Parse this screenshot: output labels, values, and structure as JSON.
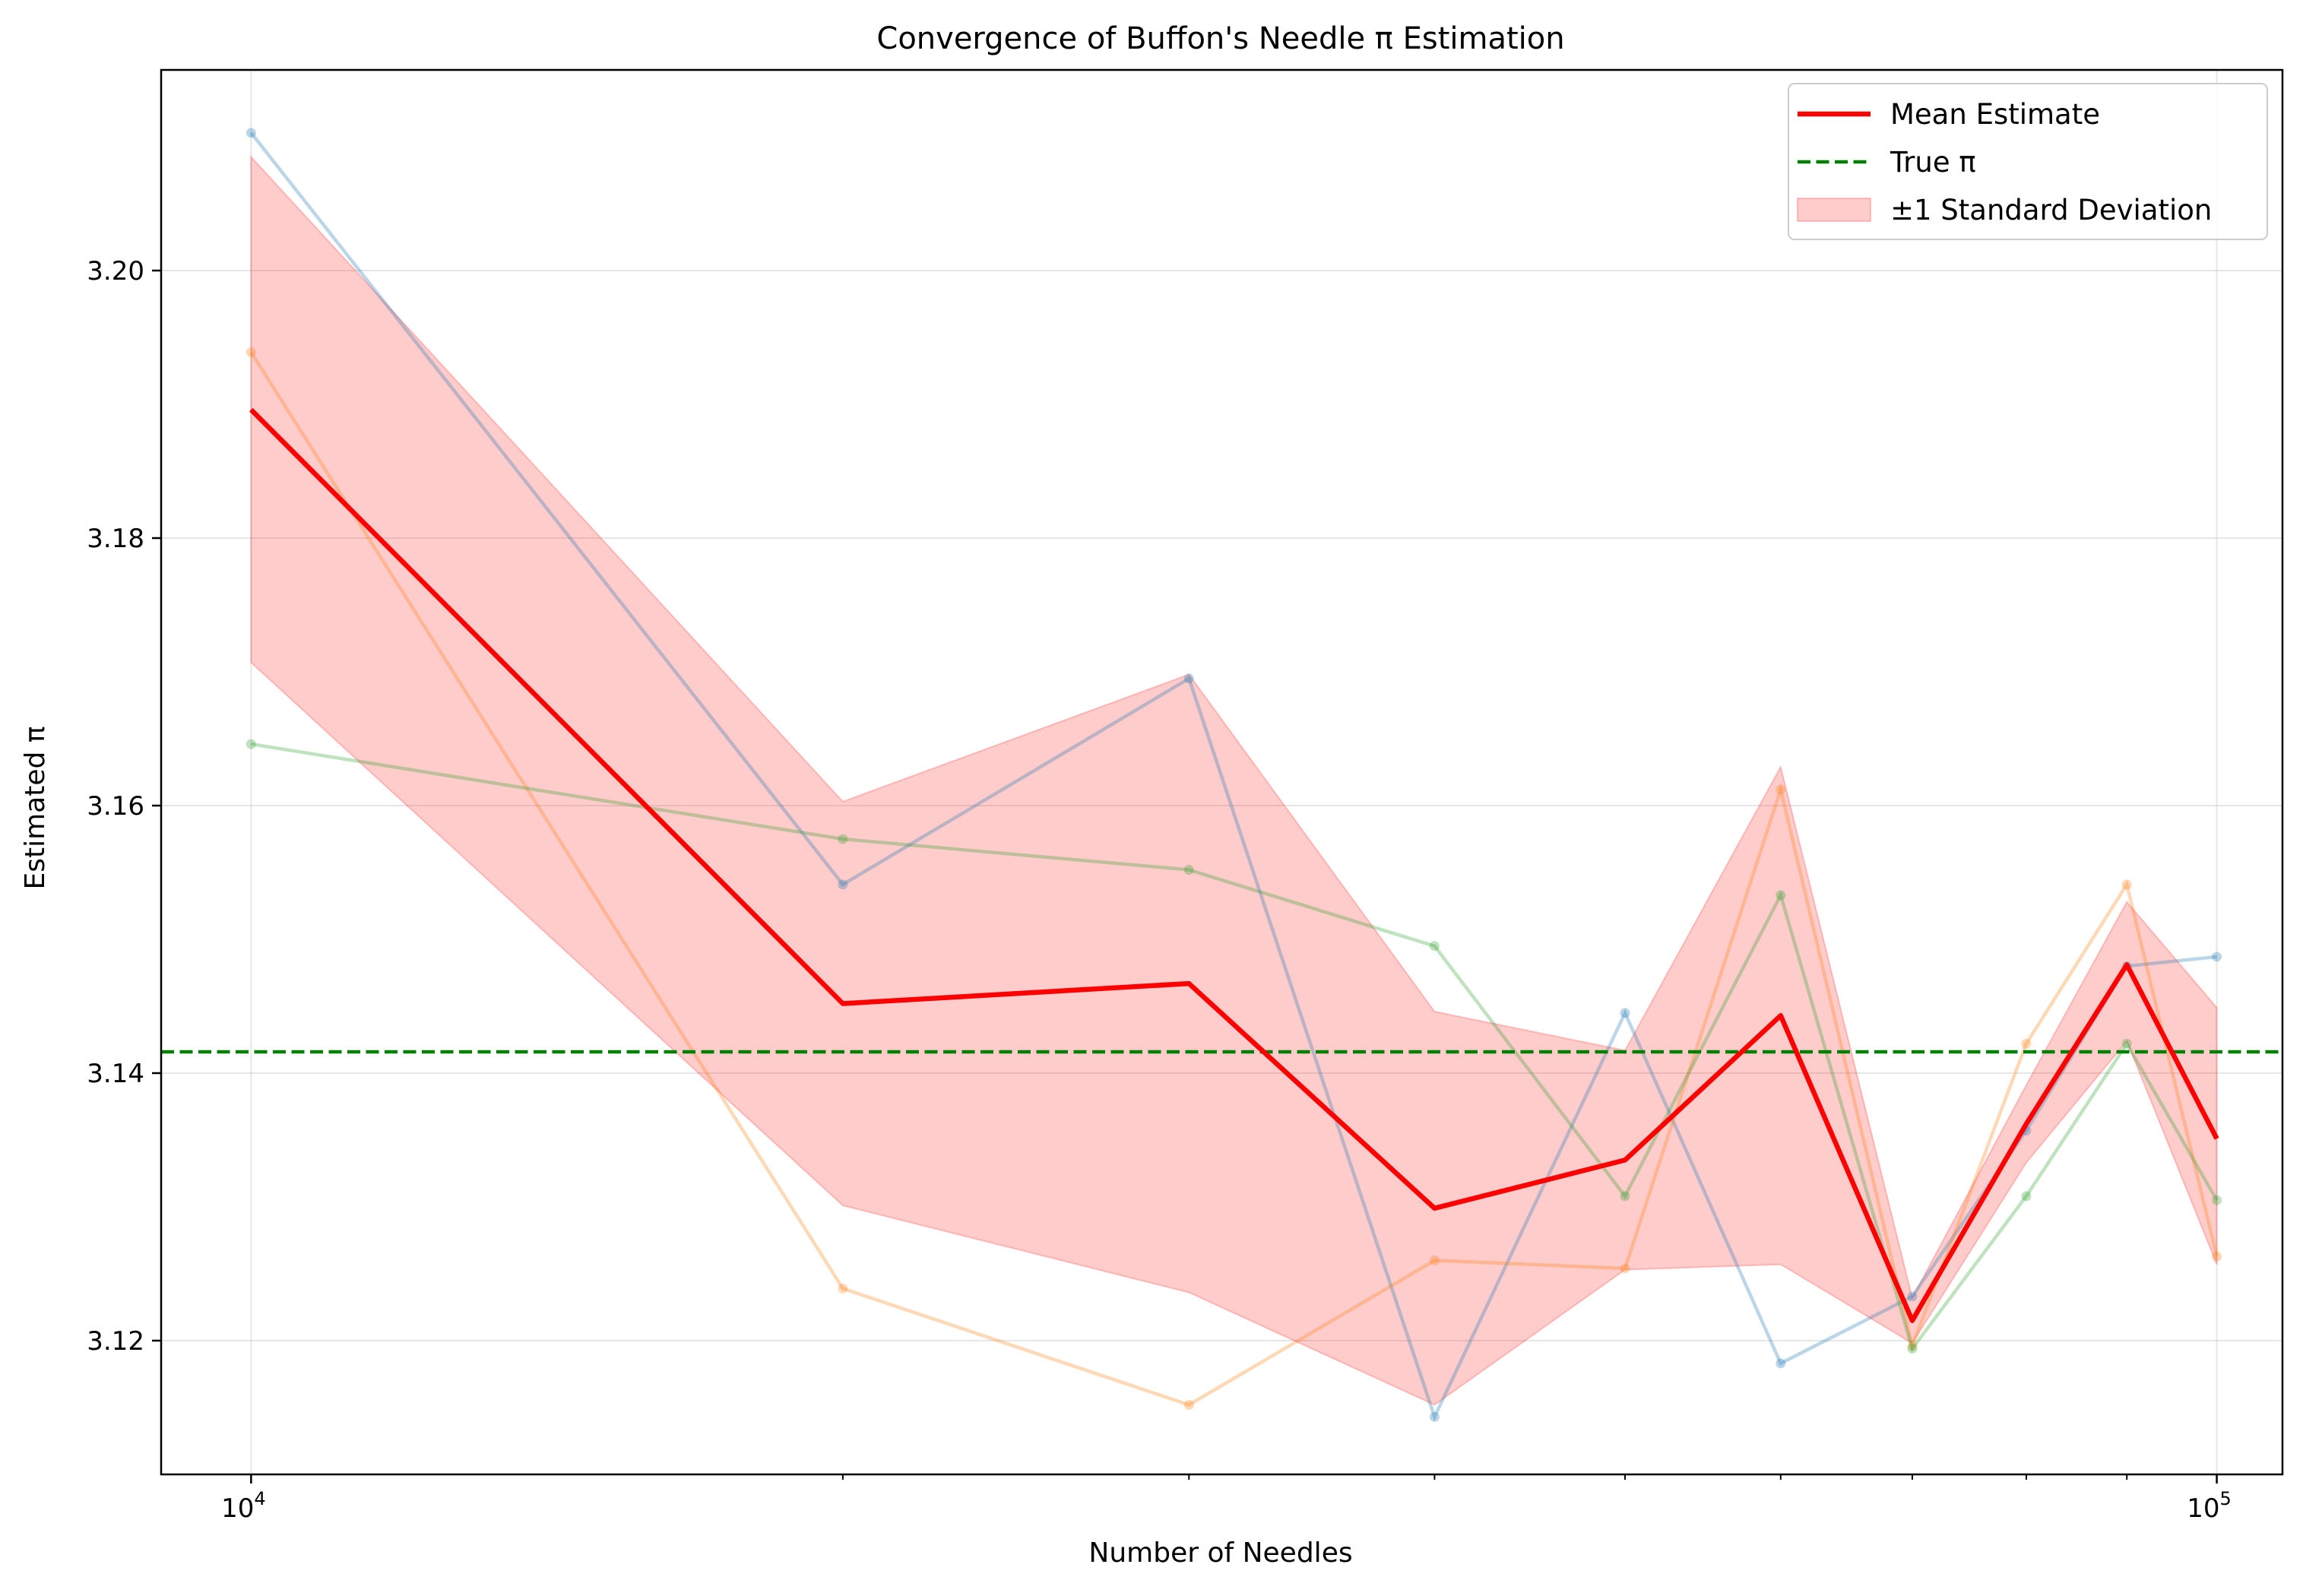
{
  "chart_data": {
    "type": "line",
    "title": "Convergence of Buffon's Needle π Estimation",
    "xlabel": "Number of Needles",
    "ylabel": "Estimated π",
    "x_scale": "log",
    "xlim": [
      9000,
      108000
    ],
    "ylim": [
      3.11,
      3.215
    ],
    "grid": true,
    "legend_position": "top-right",
    "x": [
      10000,
      20000,
      30000,
      40000,
      50000,
      60000,
      70000,
      80000,
      90000,
      100000
    ],
    "x_ticks": [
      {
        "value": 10000,
        "base": "10",
        "exp": "4"
      },
      {
        "value": 100000,
        "base": "10",
        "exp": "5"
      }
    ],
    "y_ticks": [
      3.12,
      3.14,
      3.16,
      3.18,
      3.2
    ],
    "y_tick_labels": [
      "3.12",
      "3.14",
      "3.16",
      "3.18",
      "3.20"
    ],
    "trials": [
      {
        "color": "#1f77b4",
        "values": [
          3.2103,
          3.1541,
          3.1695,
          3.1143,
          3.1445,
          3.1183,
          3.1233,
          3.1357,
          3.148,
          3.1487
        ]
      },
      {
        "color": "#ff7f0e",
        "values": [
          3.1939,
          3.1239,
          3.1152,
          3.126,
          3.1254,
          3.1612,
          3.1196,
          3.1422,
          3.1541,
          3.1263
        ]
      },
      {
        "color": "#2ca02c",
        "values": [
          3.1646,
          3.1575,
          3.1552,
          3.1495,
          3.1308,
          3.1533,
          3.1194,
          3.1308,
          3.1422,
          3.1305
        ]
      }
    ],
    "mean": {
      "name": "Mean Estimate",
      "color": "#ff0000",
      "values": [
        3.1896,
        3.1452,
        3.1467,
        3.1299,
        3.1335,
        3.1443,
        3.1215,
        3.1362,
        3.1481,
        3.1351
      ]
    },
    "band": {
      "name": "±1 Standard Deviation",
      "color": "#ff0000",
      "lower": [
        3.1707,
        3.1301,
        3.1236,
        3.1152,
        3.1253,
        3.1257,
        3.1198,
        3.1333,
        3.1424,
        3.1257
      ],
      "upper": [
        3.2085,
        3.1603,
        3.1698,
        3.1446,
        3.1417,
        3.1629,
        3.1232,
        3.1391,
        3.1528,
        3.1449
      ]
    },
    "reference": {
      "name": "True π",
      "color": "#008000",
      "value": 3.14159
    }
  }
}
